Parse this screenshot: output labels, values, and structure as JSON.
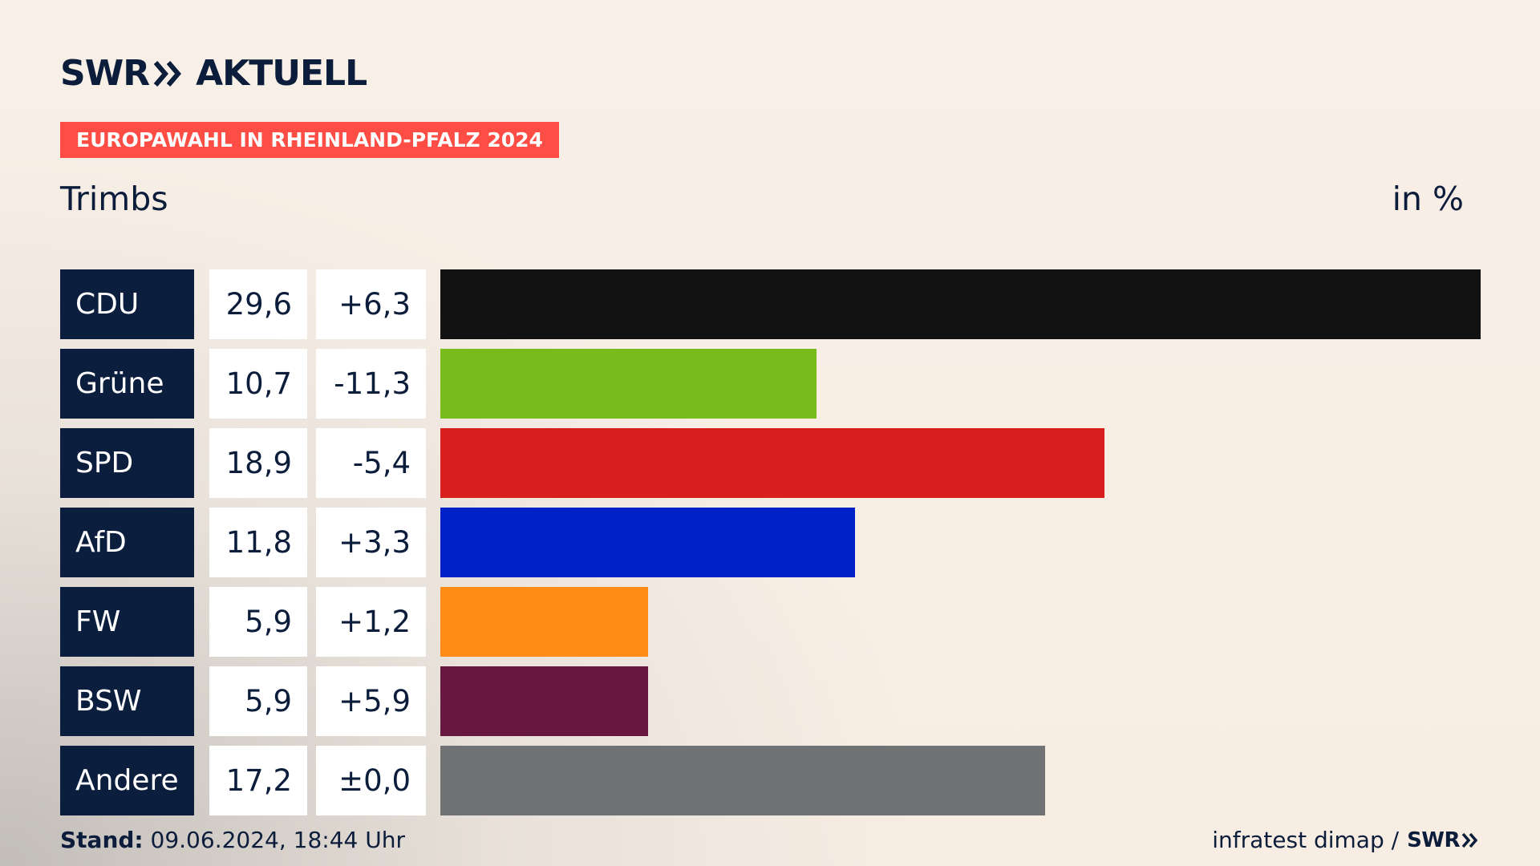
{
  "brand": {
    "logo_swr": "SWR",
    "logo_aktuell": "AKTUELL",
    "chevron_icon": "double-chevron-right-icon",
    "color_navy": "#0b1d3a"
  },
  "header": {
    "badge": "EUROPAWAHL IN RHEINLAND-PFALZ 2024",
    "badge_color": "#fe4d44",
    "subtitle": "Trimbs",
    "unit": "in %"
  },
  "chart_data": {
    "type": "bar",
    "orientation": "horizontal",
    "title": "EUROPAWAHL IN RHEINLAND-PFALZ 2024",
    "subtitle": "Trimbs",
    "unit": "in %",
    "categories": [
      "CDU",
      "Grüne",
      "SPD",
      "AfD",
      "FW",
      "BSW",
      "Andere"
    ],
    "values": [
      29.6,
      10.7,
      18.9,
      11.8,
      5.9,
      5.9,
      17.2
    ],
    "value_labels": [
      "29,6",
      "10,7",
      "18,9",
      "11,8",
      "5,9",
      "5,9",
      "17,2"
    ],
    "diff_labels": [
      "+6,3",
      "-11,3",
      "-5,4",
      "+3,3",
      "+1,2",
      "+5,9",
      "±0,0"
    ],
    "colors": [
      "#121212",
      "#78bc1b",
      "#d71f1d",
      "#0021c8",
      "#fe8b16",
      "#671740",
      "#717273"
    ],
    "xlim": [
      0,
      29.6
    ],
    "grid": false,
    "legend": "none"
  },
  "footer": {
    "stand_label": "Stand:",
    "stand_value": "09.06.2024, 18:44 Uhr",
    "source": "infratest dimap /",
    "source_logo": "SWR"
  }
}
